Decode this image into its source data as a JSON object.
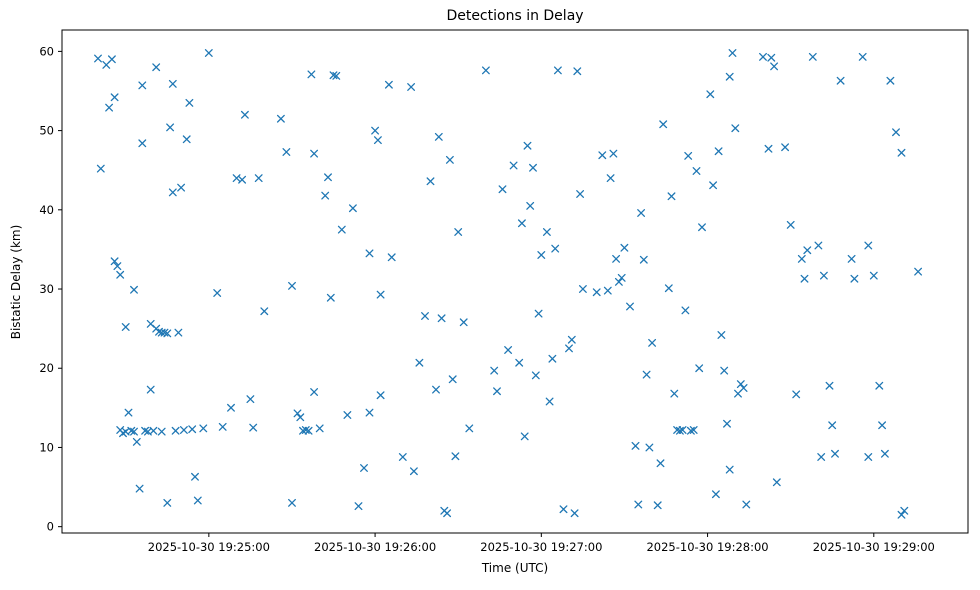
{
  "chart_data": {
    "type": "scatter",
    "title": "Detections in Delay",
    "xlabel": "Time (UTC)",
    "ylabel": "Bistatic Delay (km)",
    "marker": "x",
    "marker_color": "#1f77b4",
    "grid": false,
    "legend": null,
    "xlim": [
      -53,
      274
    ],
    "ylim": [
      -0.8,
      62.7
    ],
    "x_ticks": [
      {
        "value": 0,
        "label": "2025-10-30 19:25:00"
      },
      {
        "value": 60,
        "label": "2025-10-30 19:26:00"
      },
      {
        "value": 120,
        "label": "2025-10-30 19:27:00"
      },
      {
        "value": 180,
        "label": "2025-10-30 19:28:00"
      },
      {
        "value": 240,
        "label": "2025-10-30 19:29:00"
      }
    ],
    "y_ticks": [
      {
        "value": 0,
        "label": "0"
      },
      {
        "value": 10,
        "label": "10"
      },
      {
        "value": 20,
        "label": "20"
      },
      {
        "value": 30,
        "label": "30"
      },
      {
        "value": 40,
        "label": "40"
      },
      {
        "value": 50,
        "label": "50"
      },
      {
        "value": 60,
        "label": "60"
      }
    ],
    "x_unit": "seconds after 2025-10-30 19:25:00 UTC",
    "points": [
      [
        -40,
        59.1
      ],
      [
        -39,
        45.2
      ],
      [
        -37,
        58.3
      ],
      [
        -36,
        52.9
      ],
      [
        -35,
        59.0
      ],
      [
        -34,
        54.2
      ],
      [
        -34,
        33.5
      ],
      [
        -33,
        32.9
      ],
      [
        -32,
        31.8
      ],
      [
        -32,
        12.2
      ],
      [
        -31,
        11.8
      ],
      [
        -30,
        12.0
      ],
      [
        -30,
        25.2
      ],
      [
        -29,
        14.4
      ],
      [
        -28,
        12.1
      ],
      [
        -27,
        29.9
      ],
      [
        -27,
        12.0
      ],
      [
        -26,
        10.7
      ],
      [
        -25,
        4.8
      ],
      [
        -24,
        55.7
      ],
      [
        -24,
        48.4
      ],
      [
        -23,
        12.1
      ],
      [
        -22,
        12.0
      ],
      [
        -21,
        25.6
      ],
      [
        -21,
        17.3
      ],
      [
        -20,
        12.1
      ],
      [
        -19,
        58.0
      ],
      [
        -19,
        25.0
      ],
      [
        -18,
        24.6
      ],
      [
        -17,
        24.5
      ],
      [
        -17,
        12.0
      ],
      [
        -16,
        24.5
      ],
      [
        -15,
        24.4
      ],
      [
        -15,
        3.0
      ],
      [
        -14,
        50.4
      ],
      [
        -13,
        55.9
      ],
      [
        -13,
        42.2
      ],
      [
        -12,
        12.1
      ],
      [
        -11,
        24.5
      ],
      [
        -10,
        42.8
      ],
      [
        -9,
        12.2
      ],
      [
        -8,
        48.9
      ],
      [
        -7,
        53.5
      ],
      [
        -6,
        12.3
      ],
      [
        -5,
        6.3
      ],
      [
        -4,
        3.3
      ],
      [
        -2,
        12.4
      ],
      [
        0,
        59.8
      ],
      [
        3,
        29.5
      ],
      [
        5,
        12.6
      ],
      [
        8,
        15.0
      ],
      [
        10,
        44.0
      ],
      [
        12,
        43.8
      ],
      [
        13,
        52.0
      ],
      [
        15,
        16.1
      ],
      [
        16,
        12.5
      ],
      [
        18,
        44.0
      ],
      [
        20,
        27.2
      ],
      [
        26,
        51.5
      ],
      [
        28,
        47.3
      ],
      [
        30,
        30.4
      ],
      [
        30,
        3.0
      ],
      [
        32,
        14.3
      ],
      [
        33,
        13.8
      ],
      [
        34,
        12.1
      ],
      [
        35,
        12.2
      ],
      [
        36,
        12.1
      ],
      [
        37,
        57.1
      ],
      [
        38,
        47.1
      ],
      [
        38,
        17.0
      ],
      [
        40,
        12.4
      ],
      [
        42,
        41.8
      ],
      [
        43,
        44.1
      ],
      [
        44,
        28.9
      ],
      [
        45,
        57.0
      ],
      [
        46,
        56.9
      ],
      [
        48,
        37.5
      ],
      [
        50,
        14.1
      ],
      [
        52,
        40.2
      ],
      [
        54,
        2.6
      ],
      [
        56,
        7.4
      ],
      [
        58,
        34.5
      ],
      [
        58,
        14.4
      ],
      [
        60,
        50.0
      ],
      [
        61,
        48.8
      ],
      [
        62,
        29.3
      ],
      [
        62,
        16.6
      ],
      [
        65,
        55.8
      ],
      [
        66,
        34.0
      ],
      [
        70,
        8.8
      ],
      [
        73,
        55.5
      ],
      [
        74,
        7.0
      ],
      [
        76,
        20.7
      ],
      [
        78,
        26.6
      ],
      [
        80,
        43.6
      ],
      [
        82,
        17.3
      ],
      [
        83,
        49.2
      ],
      [
        84,
        26.3
      ],
      [
        85,
        2.0
      ],
      [
        86,
        1.7
      ],
      [
        87,
        46.3
      ],
      [
        88,
        18.6
      ],
      [
        89,
        8.9
      ],
      [
        90,
        37.2
      ],
      [
        92,
        25.8
      ],
      [
        94,
        12.4
      ],
      [
        100,
        57.6
      ],
      [
        103,
        19.7
      ],
      [
        104,
        17.1
      ],
      [
        106,
        42.6
      ],
      [
        108,
        22.3
      ],
      [
        110,
        45.6
      ],
      [
        112,
        20.7
      ],
      [
        113,
        38.3
      ],
      [
        114,
        11.4
      ],
      [
        115,
        48.1
      ],
      [
        116,
        40.5
      ],
      [
        117,
        45.3
      ],
      [
        118,
        19.1
      ],
      [
        119,
        26.9
      ],
      [
        120,
        34.3
      ],
      [
        122,
        37.2
      ],
      [
        123,
        15.8
      ],
      [
        124,
        21.2
      ],
      [
        125,
        35.1
      ],
      [
        126,
        57.6
      ],
      [
        128,
        2.2
      ],
      [
        130,
        22.5
      ],
      [
        131,
        23.6
      ],
      [
        132,
        1.7
      ],
      [
        133,
        57.5
      ],
      [
        134,
        42.0
      ],
      [
        135,
        30.0
      ],
      [
        140,
        29.6
      ],
      [
        142,
        46.9
      ],
      [
        144,
        29.8
      ],
      [
        145,
        44.0
      ],
      [
        146,
        47.1
      ],
      [
        147,
        33.8
      ],
      [
        148,
        30.9
      ],
      [
        149,
        31.4
      ],
      [
        150,
        35.2
      ],
      [
        152,
        27.8
      ],
      [
        154,
        10.2
      ],
      [
        155,
        2.8
      ],
      [
        156,
        39.6
      ],
      [
        157,
        33.7
      ],
      [
        158,
        19.2
      ],
      [
        159,
        10.0
      ],
      [
        160,
        23.2
      ],
      [
        162,
        2.7
      ],
      [
        163,
        8.0
      ],
      [
        164,
        50.8
      ],
      [
        166,
        30.1
      ],
      [
        167,
        41.7
      ],
      [
        168,
        16.8
      ],
      [
        169,
        12.2
      ],
      [
        170,
        12.1
      ],
      [
        171,
        12.2
      ],
      [
        172,
        27.3
      ],
      [
        173,
        46.8
      ],
      [
        174,
        12.1
      ],
      [
        175,
        12.2
      ],
      [
        176,
        44.9
      ],
      [
        177,
        20.0
      ],
      [
        178,
        37.8
      ],
      [
        181,
        54.6
      ],
      [
        182,
        43.1
      ],
      [
        183,
        4.1
      ],
      [
        184,
        47.4
      ],
      [
        185,
        24.2
      ],
      [
        186,
        19.7
      ],
      [
        187,
        13.0
      ],
      [
        188,
        56.8
      ],
      [
        188,
        7.2
      ],
      [
        189,
        59.8
      ],
      [
        190,
        50.3
      ],
      [
        191,
        16.8
      ],
      [
        192,
        18.0
      ],
      [
        193,
        17.5
      ],
      [
        194,
        2.8
      ],
      [
        200,
        59.3
      ],
      [
        202,
        47.7
      ],
      [
        203,
        59.2
      ],
      [
        204,
        58.1
      ],
      [
        205,
        5.6
      ],
      [
        208,
        47.9
      ],
      [
        210,
        38.1
      ],
      [
        212,
        16.7
      ],
      [
        214,
        33.8
      ],
      [
        215,
        31.3
      ],
      [
        216,
        34.9
      ],
      [
        218,
        59.3
      ],
      [
        220,
        35.5
      ],
      [
        221,
        8.8
      ],
      [
        222,
        31.7
      ],
      [
        224,
        17.8
      ],
      [
        225,
        12.8
      ],
      [
        226,
        9.2
      ],
      [
        228,
        56.3
      ],
      [
        232,
        33.8
      ],
      [
        233,
        31.3
      ],
      [
        236,
        59.3
      ],
      [
        238,
        35.5
      ],
      [
        238,
        8.8
      ],
      [
        240,
        31.7
      ],
      [
        242,
        17.8
      ],
      [
        243,
        12.8
      ],
      [
        244,
        9.2
      ],
      [
        246,
        56.3
      ],
      [
        248,
        49.8
      ],
      [
        250,
        47.2
      ],
      [
        250,
        1.5
      ],
      [
        251,
        2.0
      ],
      [
        256,
        32.2
      ]
    ]
  }
}
